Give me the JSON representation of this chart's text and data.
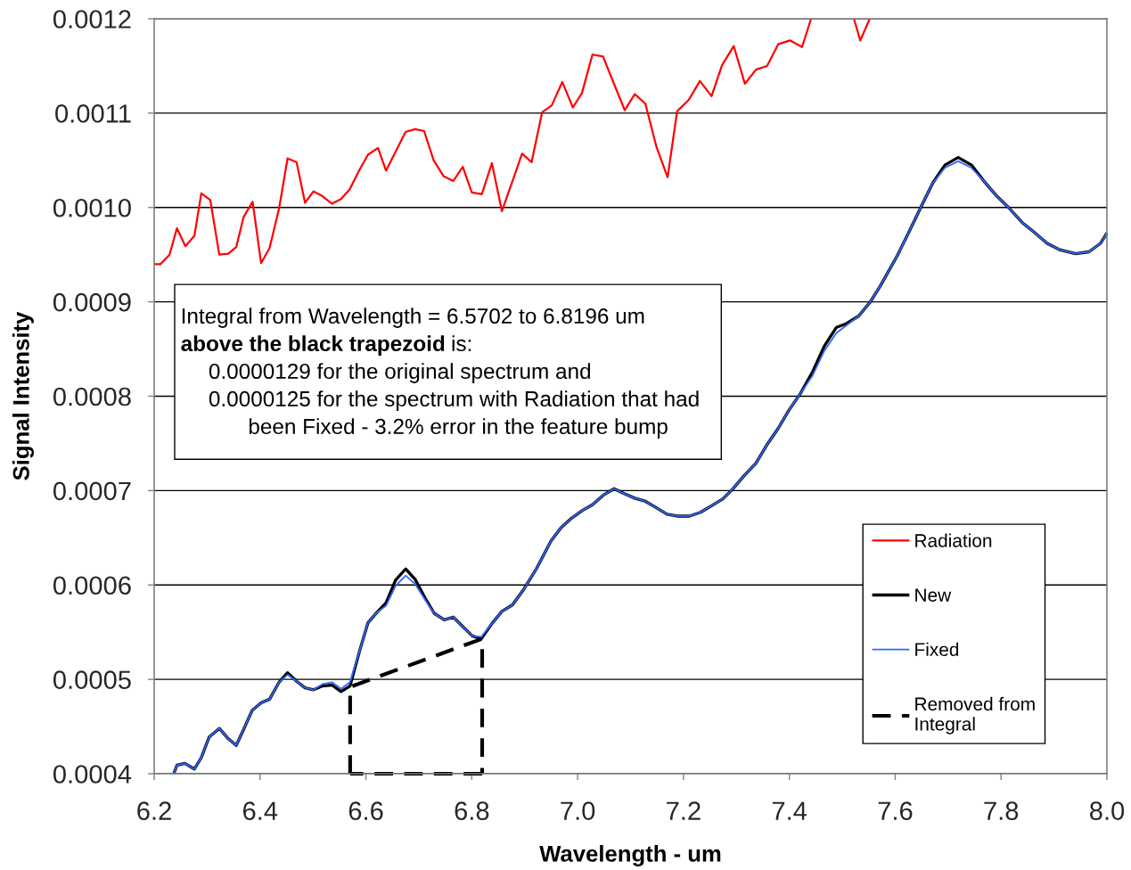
{
  "chart_data": {
    "type": "line",
    "xlabel": "Wavelength - um",
    "ylabel": "Signal Intensity",
    "xlim": [
      6.2,
      8.0
    ],
    "ylim": [
      0.0004,
      0.0012
    ],
    "xticks": [
      6.2,
      6.4,
      6.6,
      6.8,
      {
        "value": 7.0,
        "label": "7.0"
      },
      7.2,
      7.4,
      7.6,
      7.8,
      {
        "value": 8.0,
        "label": "8.0"
      }
    ],
    "yticks": [
      0.0004,
      0.0005,
      0.0006,
      0.0007,
      0.0008,
      0.0009,
      {
        "value": 0.001,
        "label": "0.0010"
      },
      0.0011,
      0.0012
    ],
    "grid": "y",
    "legend": "bottom right",
    "annotations": [
      "Integral from Wavelength = 6.5702 to 6.8196 um",
      "above the black trapezoid",
      "is:",
      "0.0000129 for the original spectrum and",
      "0.0000125 for the spectrum with Radiation that had",
      "been Fixed - 3.2% error in the feature bump"
    ],
    "series": [
      {
        "name": "Radiation",
        "color": "#ff0000",
        "x": [
          6.2,
          6.212,
          6.229,
          6.243,
          6.259,
          6.276,
          6.289,
          6.306,
          6.323,
          6.34,
          6.355,
          6.369,
          6.386,
          6.402,
          6.418,
          6.436,
          6.452,
          6.469,
          6.485,
          6.501,
          6.518,
          6.536,
          6.553,
          6.569,
          6.587,
          6.604,
          6.623,
          6.638,
          6.656,
          6.675,
          6.693,
          6.71,
          6.728,
          6.747,
          6.765,
          6.783,
          6.8,
          6.819,
          6.838,
          6.857,
          6.877,
          6.895,
          6.913,
          6.933,
          6.951,
          6.971,
          6.991,
          7.008,
          7.028,
          7.048,
          7.068,
          7.089,
          7.108,
          7.128,
          7.149,
          7.17,
          7.188,
          7.21,
          7.231,
          7.253,
          7.273,
          7.295,
          7.316,
          7.337,
          7.358,
          7.379,
          7.401,
          7.424,
          7.441,
          7.48,
          7.522,
          7.534,
          7.552
        ],
        "values": [
          0.00094,
          0.00094,
          0.00095,
          0.000978,
          0.000959,
          0.00097,
          0.001015,
          0.001008,
          0.00095,
          0.000951,
          0.000958,
          0.00099,
          0.001006,
          0.000941,
          0.000957,
          0.000999,
          0.001052,
          0.001048,
          0.001005,
          0.001017,
          0.001012,
          0.001004,
          0.001009,
          0.001019,
          0.001039,
          0.001056,
          0.001063,
          0.001039,
          0.001059,
          0.00108,
          0.001083,
          0.001081,
          0.00105,
          0.001033,
          0.001028,
          0.001043,
          0.001016,
          0.001014,
          0.001047,
          0.000996,
          0.001028,
          0.001057,
          0.001048,
          0.001101,
          0.001108,
          0.001133,
          0.001106,
          0.001121,
          0.001162,
          0.00116,
          0.001132,
          0.001103,
          0.00112,
          0.00111,
          0.001064,
          0.001032,
          0.001102,
          0.001114,
          0.001134,
          0.001118,
          0.001151,
          0.001171,
          0.001131,
          0.001146,
          0.00115,
          0.001173,
          0.001177,
          0.00117,
          0.0012,
          null,
          0.0012,
          0.001177,
          0.0012
        ]
      },
      {
        "name": "New",
        "color": "#000000",
        "x": [
          6.237,
          6.243,
          6.258,
          6.276,
          6.289,
          6.304,
          6.323,
          6.34,
          6.355,
          6.369,
          6.385,
          6.402,
          6.418,
          6.436,
          6.452,
          6.469,
          6.485,
          6.501,
          6.518,
          6.536,
          6.553,
          6.57,
          6.588,
          6.604,
          6.621,
          6.638,
          6.656,
          6.675,
          6.693,
          6.711,
          6.729,
          6.748,
          6.765,
          6.781,
          6.801,
          6.818,
          6.838,
          6.857,
          6.877,
          6.899,
          6.922,
          6.95,
          6.969,
          6.989,
          7.009,
          7.028,
          7.048,
          7.069,
          7.087,
          7.108,
          7.127,
          7.148,
          7.169,
          7.188,
          7.211,
          7.232,
          7.253,
          7.274,
          7.292,
          7.315,
          7.337,
          7.357,
          7.379,
          7.399,
          7.421,
          7.444,
          7.466,
          7.489,
          7.508,
          7.531,
          7.553,
          7.573,
          7.604,
          7.626,
          7.649,
          7.671,
          7.694,
          7.719,
          7.744,
          7.766,
          7.792,
          7.814,
          7.84,
          7.862,
          7.887,
          7.912,
          7.941,
          7.966,
          7.988,
          8.0
        ],
        "values": [
          0.0004,
          0.000409,
          0.000411,
          0.000405,
          0.000417,
          0.000439,
          0.000448,
          0.000437,
          0.00043,
          0.000447,
          0.000467,
          0.000475,
          0.000479,
          0.000497,
          0.000507,
          0.000498,
          0.000491,
          0.000489,
          0.000493,
          0.000494,
          0.000487,
          0.000493,
          0.00053,
          0.00056,
          0.000571,
          0.000581,
          0.000605,
          0.000617,
          0.000606,
          0.000587,
          0.00057,
          0.000563,
          0.000566,
          0.000557,
          0.000546,
          0.000543,
          0.000559,
          0.000572,
          0.000579,
          0.000596,
          0.000617,
          0.000647,
          0.000661,
          0.000671,
          0.000679,
          0.000685,
          0.000695,
          0.000702,
          0.000697,
          0.000692,
          0.000689,
          0.000682,
          0.000675,
          0.000673,
          0.000673,
          0.000677,
          0.000684,
          0.000691,
          0.000701,
          0.000716,
          0.000729,
          0.000748,
          0.000766,
          0.000785,
          0.000803,
          0.000826,
          0.000853,
          0.000873,
          0.000877,
          0.000885,
          0.0009,
          0.000918,
          0.000949,
          0.000974,
          0.001001,
          0.001026,
          0.001045,
          0.001053,
          0.001045,
          0.001029,
          0.001012,
          0.001,
          0.000984,
          0.000974,
          0.000962,
          0.000955,
          0.000951,
          0.000953,
          0.000962,
          0.000973
        ]
      },
      {
        "name": "Fixed",
        "color": "#3366ff",
        "x": [
          6.237,
          6.243,
          6.258,
          6.276,
          6.289,
          6.304,
          6.323,
          6.34,
          6.355,
          6.369,
          6.385,
          6.402,
          6.418,
          6.436,
          6.452,
          6.469,
          6.485,
          6.501,
          6.518,
          6.536,
          6.553,
          6.57,
          6.588,
          6.604,
          6.621,
          6.638,
          6.656,
          6.675,
          6.693,
          6.711,
          6.729,
          6.748,
          6.765,
          6.781,
          6.801,
          6.818,
          6.838,
          6.857,
          6.877,
          6.899,
          6.922,
          6.95,
          6.969,
          6.989,
          7.009,
          7.028,
          7.048,
          7.069,
          7.087,
          7.108,
          7.127,
          7.148,
          7.169,
          7.188,
          7.211,
          7.232,
          7.253,
          7.274,
          7.292,
          7.315,
          7.337,
          7.357,
          7.379,
          7.399,
          7.421,
          7.444,
          7.466,
          7.489,
          7.508,
          7.531,
          7.553,
          7.573,
          7.604,
          7.626,
          7.649,
          7.671,
          7.694,
          7.719,
          7.744,
          7.766,
          7.792,
          7.814,
          7.84,
          7.862,
          7.887,
          7.912,
          7.941,
          7.966,
          7.988,
          8.0
        ],
        "values": [
          0.0004,
          0.000409,
          0.000411,
          0.000405,
          0.000417,
          0.000439,
          0.000448,
          0.000437,
          0.00043,
          0.000447,
          0.000467,
          0.000475,
          0.000479,
          0.000497,
          0.000505,
          0.000498,
          0.000491,
          0.000489,
          0.000495,
          0.000497,
          0.00049,
          0.000497,
          0.00053,
          0.00056,
          0.000571,
          0.000578,
          0.000599,
          0.00061,
          0.000601,
          0.000585,
          0.00057,
          0.000563,
          0.000566,
          0.000557,
          0.000546,
          0.000545,
          0.000559,
          0.000572,
          0.000579,
          0.000596,
          0.000617,
          0.000647,
          0.000661,
          0.000671,
          0.000679,
          0.000685,
          0.000695,
          0.000702,
          0.000697,
          0.000692,
          0.000689,
          0.000682,
          0.000675,
          0.000673,
          0.000673,
          0.000677,
          0.000684,
          0.000691,
          0.000701,
          0.000716,
          0.000729,
          0.000748,
          0.000766,
          0.000785,
          0.000803,
          0.000822,
          0.000848,
          0.000867,
          0.000875,
          0.000885,
          0.0009,
          0.000918,
          0.000949,
          0.000974,
          0.001001,
          0.001026,
          0.001042,
          0.001049,
          0.001042,
          0.001029,
          0.001012,
          0.001,
          0.000984,
          0.000974,
          0.000962,
          0.000955,
          0.000951,
          0.000953,
          0.000962,
          0.000973
        ]
      },
      {
        "name": "Removed from\nIntegral",
        "color": "#000000",
        "line_style": "dashed",
        "x": [
          6.5702,
          6.5702,
          6.8196,
          6.8196,
          6.5702
        ],
        "values": [
          0.0004,
          0.000492,
          0.000543,
          0.0004,
          0.0004
        ]
      }
    ]
  }
}
